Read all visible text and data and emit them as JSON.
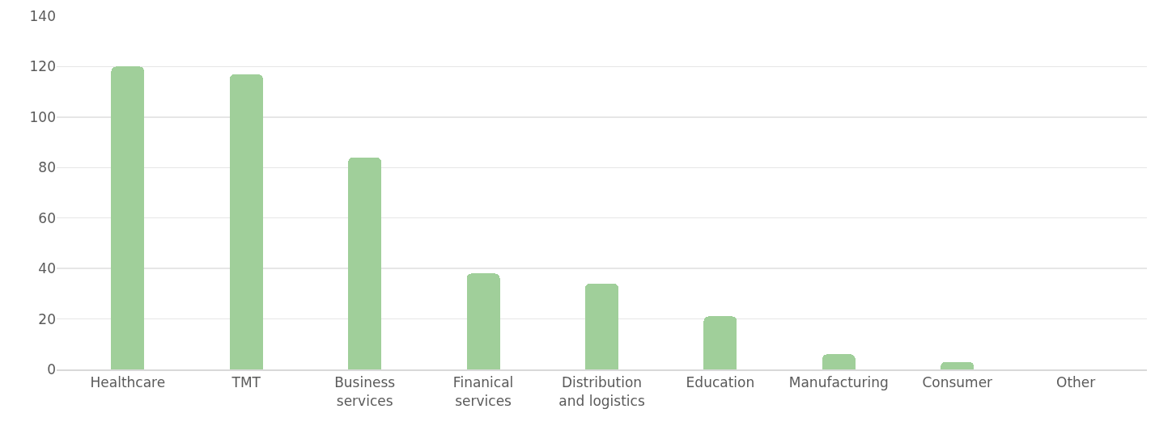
{
  "chart_data": {
    "type": "bar",
    "categories": [
      "Healthcare",
      "TMT",
      "Business services",
      "Finanical services",
      "Distribution and logistics",
      "Education",
      "Manufacturing",
      "Consumer",
      "Other"
    ],
    "values": [
      120,
      117,
      84,
      38,
      34,
      21,
      6,
      3,
      0
    ],
    "color": "#a0cf9a",
    "ylim": [
      0,
      140
    ],
    "yticks": [
      0,
      20,
      40,
      60,
      80,
      100,
      120,
      140
    ],
    "grid": "y"
  }
}
